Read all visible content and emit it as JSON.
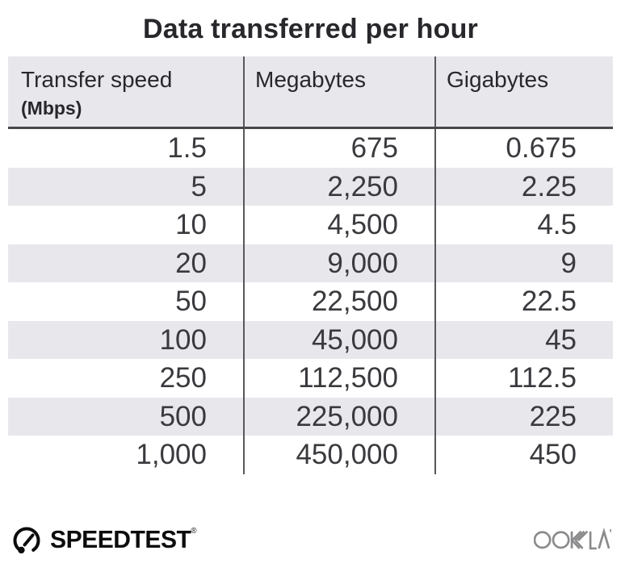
{
  "title": "Data transferred per hour",
  "table": {
    "columns": [
      {
        "label": "Transfer speed",
        "sublabel": "(Mbps)"
      },
      {
        "label": "Megabytes"
      },
      {
        "label": "Gigabytes"
      }
    ],
    "rows": [
      [
        "1.5",
        "675",
        "0.675"
      ],
      [
        "5",
        "2,250",
        "2.25"
      ],
      [
        "10",
        "4,500",
        "4.5"
      ],
      [
        "20",
        "9,000",
        "9"
      ],
      [
        "50",
        "22,500",
        "22.5"
      ],
      [
        "100",
        "45,000",
        "45"
      ],
      [
        "250",
        "112,500",
        "112.5"
      ],
      [
        "500",
        "225,000",
        "225"
      ],
      [
        "1,000",
        "450,000",
        "450"
      ]
    ]
  },
  "footer": {
    "brand": "SPEEDTEST",
    "brand_mark": "®",
    "company": "OOKLA"
  },
  "colors": {
    "stripe": "#e8e8ec",
    "divider": "#58585c",
    "header_border": "#47474b",
    "text_dark": "#28282c",
    "text_number": "#3a3a3e",
    "brand_black": "#0c0c0d",
    "ookla_gray": "#8b8b8d"
  },
  "chart_data": {
    "type": "table",
    "title": "Data transferred per hour",
    "columns": [
      "Transfer speed (Mbps)",
      "Megabytes",
      "Gigabytes"
    ],
    "rows": [
      [
        1.5,
        675,
        0.675
      ],
      [
        5,
        2250,
        2.25
      ],
      [
        10,
        4500,
        4.5
      ],
      [
        20,
        9000,
        9
      ],
      [
        50,
        22500,
        22.5
      ],
      [
        100,
        45000,
        45
      ],
      [
        250,
        112500,
        112.5
      ],
      [
        500,
        225000,
        225
      ],
      [
        1000,
        450000,
        450
      ]
    ]
  }
}
